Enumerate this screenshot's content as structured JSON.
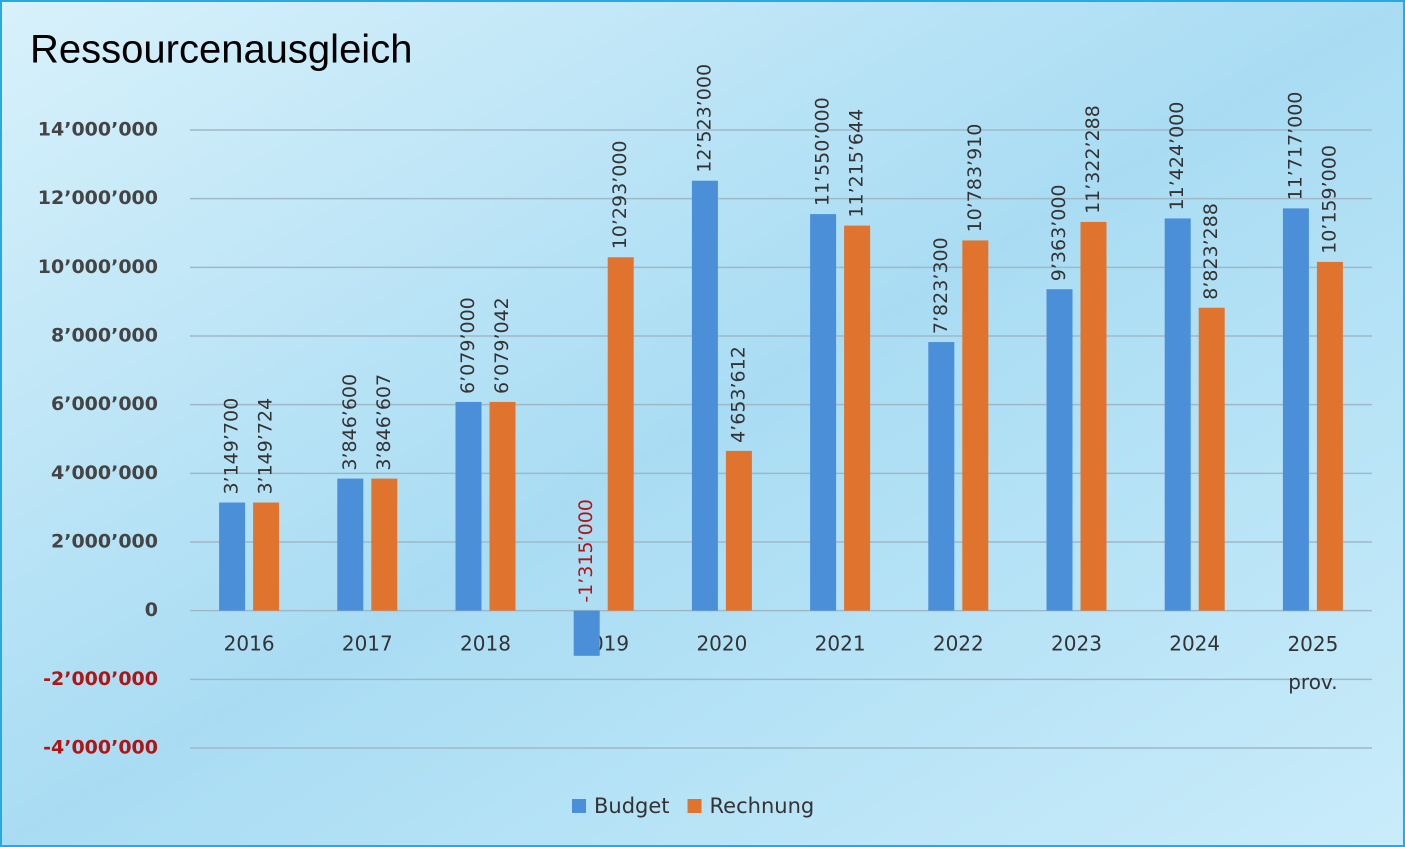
{
  "chart_data": {
    "type": "bar",
    "title": "Ressourcenausgleich",
    "categories": [
      "2016",
      "2017",
      "2018",
      "2019",
      "2020",
      "2021",
      "2022",
      "2023",
      "2024",
      "2025 prov."
    ],
    "series": [
      {
        "name": "Budget",
        "color": "#4a8fd8",
        "values": [
          3149700,
          3846600,
          6079000,
          -1315000,
          12523000,
          11550000,
          7823300,
          9363000,
          11424000,
          11717000
        ],
        "value_labels": [
          "3’149’700",
          "3’846’600",
          "6’079’000",
          "-1’315’000",
          "12’523’000",
          "11’550’000",
          "7’823’300",
          "9’363’000",
          "11’424’000",
          "11’717’000"
        ]
      },
      {
        "name": "Rechnung",
        "color": "#e0742f",
        "values": [
          3149724,
          3846607,
          6079042,
          10293000,
          4653612,
          11215644,
          10783910,
          11322288,
          8823288,
          10159000
        ],
        "value_labels": [
          "3’149’724",
          "3’846’607",
          "6’079’042",
          "10’293’000",
          "4’653’612",
          "11’215’644",
          "10’783’910",
          "11’322’288",
          "8’823’288",
          "10’159’000"
        ]
      }
    ],
    "ylim": [
      -4000000,
      14000000
    ],
    "yticks": [
      {
        "value": -4000000,
        "label": "-4’000’000"
      },
      {
        "value": -2000000,
        "label": "-2’000’000"
      },
      0,
      {
        "value": 2000000,
        "label": "2’000’000"
      },
      {
        "value": 4000000,
        "label": "4’000’000"
      },
      {
        "value": 6000000,
        "label": "6’000’000"
      },
      {
        "value": 8000000,
        "label": "8’000’000"
      },
      {
        "value": 10000000,
        "label": "10’000’000"
      },
      {
        "value": 12000000,
        "label": "12’000’000"
      },
      {
        "value": 14000000,
        "label": "14’000’000"
      }
    ],
    "grid": true,
    "legend": "bottom",
    "negative_color": "#b01515"
  }
}
